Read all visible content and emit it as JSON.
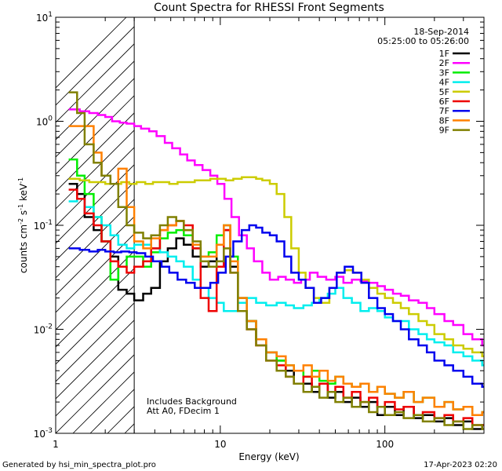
{
  "chart_data": {
    "type": "line",
    "title": "Count Spectra for RHESSI Front Segments",
    "xlabel": "Energy (keV)",
    "ylabel": "counts cm-2 s-1 keV-1",
    "xscale": "log",
    "yscale": "log",
    "xlim": [
      1,
      400
    ],
    "ylim": [
      0.001,
      10
    ],
    "x_ticks": [
      {
        "value": 1,
        "label": "1"
      },
      {
        "value": 10,
        "label": "10"
      },
      {
        "value": 100,
        "label": "100"
      }
    ],
    "y_ticks": [
      {
        "value": 0.001,
        "base": "10",
        "exp": "-3"
      },
      {
        "value": 0.01,
        "base": "10",
        "exp": "-2"
      },
      {
        "value": 0.1,
        "base": "10",
        "exp": "-1"
      },
      {
        "value": 1,
        "base": "10",
        "exp": "0"
      },
      {
        "value": 10,
        "base": "10",
        "exp": "1"
      }
    ],
    "date_label": "18-Sep-2014",
    "time_range": "05:25:00 to 05:26:00",
    "annotation_lines": [
      "Includes Background",
      "Att A0, FDecim 1"
    ],
    "excluded_region": [
      1,
      3
    ],
    "legend_position": "top-right",
    "series": [
      {
        "name": "1F",
        "color": "#000000",
        "x": [
          1.2,
          1.35,
          1.5,
          1.7,
          1.9,
          2.15,
          2.4,
          2.7,
          3.0,
          3.4,
          3.8,
          4.3,
          4.8,
          5.4,
          6.0,
          6.8,
          7.6,
          8.5,
          9.5,
          10.5,
          11.5,
          12.8,
          14.5,
          16.5,
          19,
          22,
          25,
          28,
          32,
          36,
          40,
          45,
          50,
          56,
          63,
          71,
          80,
          90,
          100,
          115,
          130,
          150,
          170,
          200,
          230,
          260,
          300,
          340,
          390
        ],
        "y": [
          0.25,
          0.2,
          0.12,
          0.09,
          0.07,
          0.05,
          0.024,
          0.022,
          0.019,
          0.022,
          0.025,
          0.045,
          0.06,
          0.075,
          0.065,
          0.05,
          0.04,
          0.045,
          0.065,
          0.09,
          0.04,
          0.02,
          0.012,
          0.008,
          0.006,
          0.005,
          0.004,
          0.003,
          0.003,
          0.0025,
          0.003,
          0.0022,
          0.0025,
          0.002,
          0.0022,
          0.0018,
          0.002,
          0.0015,
          0.0018,
          0.0015,
          0.0018,
          0.0014,
          0.0015,
          0.0013,
          0.0014,
          0.0012,
          0.0013,
          0.0011,
          0.0012
        ]
      },
      {
        "name": "2F",
        "color": "#ff00ff",
        "x": [
          1.2,
          1.4,
          1.6,
          1.8,
          2.0,
          2.2,
          2.45,
          2.7,
          3.0,
          3.3,
          3.7,
          4.1,
          4.6,
          5.1,
          5.7,
          6.3,
          7.0,
          7.8,
          8.7,
          9.6,
          10.6,
          11.7,
          13,
          14.5,
          16,
          18,
          20,
          22.5,
          25,
          28,
          31,
          35,
          39,
          44,
          50,
          56,
          63,
          71,
          80,
          90,
          100,
          112,
          125,
          140,
          160,
          180,
          200,
          230,
          260,
          300,
          340,
          390
        ],
        "y": [
          1.3,
          1.25,
          1.2,
          1.15,
          1.1,
          1.0,
          0.97,
          0.95,
          0.9,
          0.85,
          0.8,
          0.72,
          0.62,
          0.55,
          0.48,
          0.42,
          0.38,
          0.34,
          0.3,
          0.25,
          0.18,
          0.12,
          0.08,
          0.06,
          0.045,
          0.035,
          0.03,
          0.032,
          0.03,
          0.028,
          0.03,
          0.035,
          0.032,
          0.03,
          0.032,
          0.028,
          0.03,
          0.029,
          0.028,
          0.026,
          0.024,
          0.022,
          0.021,
          0.019,
          0.018,
          0.016,
          0.014,
          0.012,
          0.011,
          0.009,
          0.008,
          0.007
        ]
      },
      {
        "name": "3F",
        "color": "#00ee00",
        "x": [
          1.2,
          1.35,
          1.5,
          1.7,
          1.9,
          2.15,
          2.4,
          2.7,
          3.0,
          3.4,
          3.8,
          4.3,
          4.8,
          5.4,
          6.0,
          6.8,
          7.6,
          8.5,
          9.5,
          10.5,
          11.5,
          12.8,
          14.5,
          16.5,
          19,
          22,
          25,
          28,
          32,
          36,
          40,
          45,
          50,
          56,
          63,
          71,
          80,
          90,
          100,
          115,
          130,
          150,
          170,
          200,
          230,
          260,
          300,
          340,
          390
        ],
        "y": [
          0.43,
          0.3,
          0.2,
          0.12,
          0.07,
          0.03,
          0.04,
          0.05,
          0.05,
          0.04,
          0.055,
          0.075,
          0.085,
          0.09,
          0.08,
          0.06,
          0.05,
          0.055,
          0.08,
          0.1,
          0.05,
          0.02,
          0.012,
          0.008,
          0.006,
          0.005,
          0.0045,
          0.004,
          0.0035,
          0.004,
          0.0032,
          0.003,
          0.0035,
          0.003,
          0.0028,
          0.003,
          0.0025,
          0.0028,
          0.0024,
          0.0022,
          0.0025,
          0.002,
          0.0022,
          0.0018,
          0.002,
          0.0017,
          0.0018,
          0.0015,
          0.0016
        ]
      },
      {
        "name": "4F",
        "color": "#00eeee",
        "x": [
          1.2,
          1.35,
          1.5,
          1.7,
          1.9,
          2.15,
          2.4,
          2.7,
          3.0,
          3.4,
          3.8,
          4.3,
          4.8,
          5.4,
          6.0,
          6.8,
          7.6,
          8.5,
          9.5,
          10.5,
          11.5,
          12.8,
          14.5,
          16.5,
          19,
          22,
          25,
          28,
          32,
          36,
          40,
          45,
          50,
          56,
          63,
          71,
          80,
          90,
          100,
          112,
          125,
          140,
          160,
          180,
          200,
          230,
          260,
          300,
          340,
          390
        ],
        "y": [
          0.17,
          0.18,
          0.15,
          0.12,
          0.1,
          0.08,
          0.065,
          0.06,
          0.065,
          0.065,
          0.06,
          0.055,
          0.05,
          0.045,
          0.04,
          0.03,
          0.025,
          0.02,
          0.018,
          0.015,
          0.015,
          0.018,
          0.02,
          0.018,
          0.017,
          0.018,
          0.017,
          0.016,
          0.017,
          0.018,
          0.02,
          0.022,
          0.025,
          0.02,
          0.018,
          0.015,
          0.016,
          0.015,
          0.013,
          0.012,
          0.012,
          0.01,
          0.009,
          0.008,
          0.0075,
          0.007,
          0.006,
          0.0055,
          0.005,
          0.0045
        ]
      },
      {
        "name": "5F",
        "color": "#cccc00",
        "x": [
          1.2,
          1.4,
          1.6,
          1.8,
          2.0,
          2.25,
          2.5,
          2.8,
          3.1,
          3.5,
          3.9,
          4.4,
          4.9,
          5.5,
          6.2,
          7.0,
          7.8,
          8.7,
          9.7,
          10.8,
          12,
          13.5,
          15,
          16.5,
          18,
          20,
          22,
          24.5,
          27,
          30,
          33,
          37,
          41,
          46,
          51,
          57,
          64,
          72,
          80,
          90,
          100,
          112,
          125,
          140,
          160,
          180,
          200,
          230,
          260,
          300,
          340,
          390
        ],
        "y": [
          0.28,
          0.27,
          0.26,
          0.26,
          0.25,
          0.25,
          0.26,
          0.25,
          0.26,
          0.25,
          0.26,
          0.26,
          0.25,
          0.26,
          0.26,
          0.27,
          0.27,
          0.28,
          0.28,
          0.27,
          0.28,
          0.29,
          0.29,
          0.28,
          0.27,
          0.25,
          0.2,
          0.12,
          0.06,
          0.035,
          0.025,
          0.02,
          0.018,
          0.025,
          0.035,
          0.037,
          0.035,
          0.03,
          0.025,
          0.022,
          0.02,
          0.018,
          0.016,
          0.014,
          0.012,
          0.011,
          0.009,
          0.008,
          0.007,
          0.0065,
          0.006,
          0.0055
        ]
      },
      {
        "name": "6F",
        "color": "#ee0000",
        "x": [
          1.2,
          1.35,
          1.5,
          1.7,
          1.9,
          2.15,
          2.4,
          2.7,
          3.0,
          3.4,
          3.8,
          4.3,
          4.8,
          5.4,
          6.0,
          6.8,
          7.6,
          8.5,
          9.5,
          10.5,
          11.5,
          12.8,
          14.5,
          16.5,
          19,
          22,
          25,
          28,
          32,
          36,
          40,
          45,
          50,
          56,
          63,
          71,
          80,
          90,
          100,
          115,
          130,
          150,
          170,
          200,
          230,
          260,
          300,
          340,
          390
        ],
        "y": [
          0.22,
          0.18,
          0.13,
          0.1,
          0.07,
          0.045,
          0.04,
          0.035,
          0.04,
          0.045,
          0.06,
          0.09,
          0.1,
          0.11,
          0.1,
          0.06,
          0.02,
          0.015,
          0.04,
          0.09,
          0.035,
          0.015,
          0.01,
          0.007,
          0.005,
          0.0045,
          0.0035,
          0.003,
          0.0035,
          0.0028,
          0.003,
          0.0025,
          0.0028,
          0.0022,
          0.0025,
          0.002,
          0.0022,
          0.0018,
          0.002,
          0.0017,
          0.0018,
          0.0015,
          0.0016,
          0.0014,
          0.0015,
          0.0013,
          0.0014,
          0.0012,
          0.0012
        ]
      },
      {
        "name": "7F",
        "color": "#0000ee",
        "x": [
          1.2,
          1.4,
          1.6,
          1.8,
          2.0,
          2.25,
          2.5,
          2.8,
          3.1,
          3.5,
          3.9,
          4.4,
          4.9,
          5.5,
          6.2,
          7.0,
          7.8,
          8.7,
          9.7,
          10.8,
          12,
          13.5,
          15,
          16.5,
          18,
          20,
          22,
          24.5,
          27,
          30,
          33,
          37,
          41,
          46,
          51,
          57,
          64,
          72,
          80,
          90,
          100,
          112,
          125,
          140,
          160,
          180,
          200,
          230,
          260,
          300,
          340,
          390
        ],
        "y": [
          0.06,
          0.058,
          0.056,
          0.058,
          0.056,
          0.055,
          0.056,
          0.055,
          0.054,
          0.05,
          0.045,
          0.04,
          0.035,
          0.03,
          0.028,
          0.025,
          0.025,
          0.028,
          0.035,
          0.05,
          0.07,
          0.09,
          0.1,
          0.095,
          0.085,
          0.08,
          0.07,
          0.05,
          0.035,
          0.03,
          0.025,
          0.018,
          0.02,
          0.025,
          0.035,
          0.04,
          0.035,
          0.028,
          0.02,
          0.016,
          0.014,
          0.012,
          0.01,
          0.008,
          0.007,
          0.006,
          0.005,
          0.0045,
          0.004,
          0.0035,
          0.003,
          0.0028
        ]
      },
      {
        "name": "8F",
        "color": "#ff8000",
        "x": [
          1.2,
          1.35,
          1.5,
          1.7,
          1.9,
          2.15,
          2.4,
          2.7,
          3.0,
          3.4,
          3.8,
          4.3,
          4.8,
          5.4,
          6.0,
          6.8,
          7.6,
          8.5,
          9.5,
          10.5,
          11.5,
          12.8,
          14.5,
          16.5,
          19,
          22,
          25,
          28,
          32,
          36,
          40,
          45,
          50,
          56,
          63,
          71,
          80,
          90,
          100,
          115,
          130,
          150,
          170,
          200,
          230,
          260,
          300,
          340,
          390
        ],
        "y": [
          0.9,
          0.9,
          0.9,
          0.5,
          0.3,
          0.25,
          0.35,
          0.15,
          0.07,
          0.06,
          0.075,
          0.09,
          0.1,
          0.11,
          0.09,
          0.065,
          0.05,
          0.05,
          0.065,
          0.1,
          0.045,
          0.02,
          0.012,
          0.008,
          0.006,
          0.0055,
          0.0045,
          0.004,
          0.0045,
          0.0035,
          0.004,
          0.0032,
          0.0035,
          0.003,
          0.0028,
          0.003,
          0.0025,
          0.0028,
          0.0024,
          0.0022,
          0.0025,
          0.002,
          0.0022,
          0.0018,
          0.002,
          0.0017,
          0.0018,
          0.0015,
          0.0016
        ]
      },
      {
        "name": "9F",
        "color": "#808000",
        "x": [
          1.2,
          1.35,
          1.5,
          1.7,
          1.9,
          2.15,
          2.4,
          2.7,
          3.0,
          3.4,
          3.8,
          4.3,
          4.8,
          5.4,
          6.0,
          6.8,
          7.6,
          8.5,
          9.5,
          10.5,
          11.5,
          12.8,
          14.5,
          16.5,
          19,
          22,
          25,
          28,
          32,
          36,
          40,
          45,
          50,
          56,
          63,
          71,
          80,
          90,
          100,
          115,
          130,
          150,
          170,
          200,
          230,
          260,
          300,
          340,
          390
        ],
        "y": [
          1.9,
          1.2,
          0.6,
          0.4,
          0.3,
          0.25,
          0.15,
          0.1,
          0.085,
          0.075,
          0.08,
          0.1,
          0.12,
          0.11,
          0.09,
          0.07,
          0.045,
          0.04,
          0.045,
          0.06,
          0.035,
          0.015,
          0.01,
          0.007,
          0.005,
          0.004,
          0.0035,
          0.003,
          0.0025,
          0.0028,
          0.0022,
          0.0025,
          0.002,
          0.0022,
          0.0018,
          0.002,
          0.0016,
          0.0018,
          0.0015,
          0.0016,
          0.0014,
          0.0015,
          0.0013,
          0.0014,
          0.0012,
          0.0013,
          0.0011,
          0.0012,
          0.0011
        ]
      }
    ]
  },
  "footer": {
    "generated_by": "Generated by hsi_min_spectra_plot.pro",
    "timestamp": "17-Apr-2023 02:20"
  }
}
